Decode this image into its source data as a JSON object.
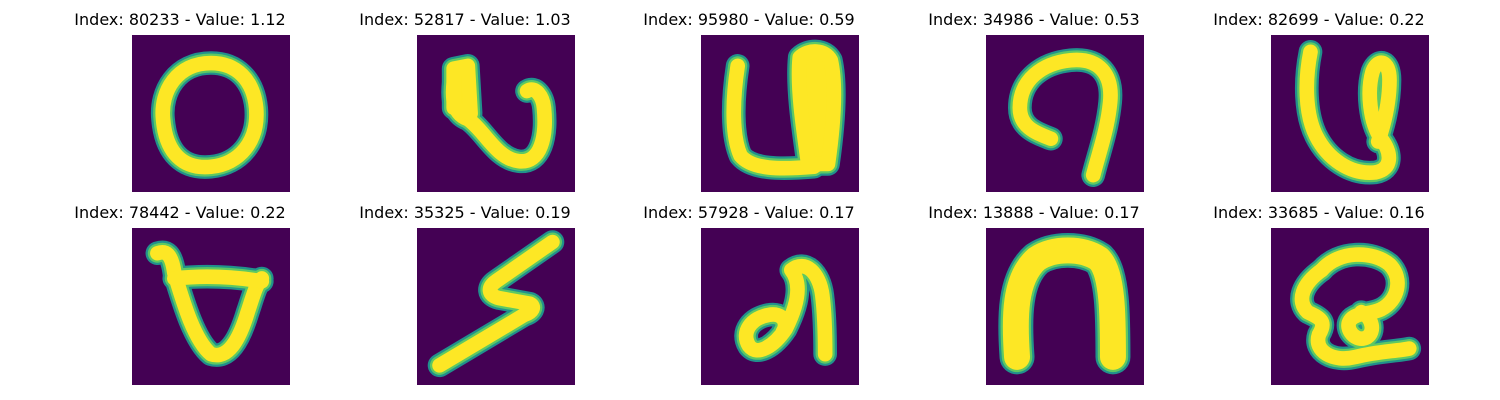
{
  "palette": {
    "background": "#440154",
    "edge": "#21918c",
    "mid": "#5ec962",
    "stroke": "#fde725"
  },
  "panels": [
    {
      "title": "Index: 80233 - Value: 1.12",
      "glyph": "ring-o"
    },
    {
      "title": "Index: 52817 - Value: 1.03",
      "glyph": "hook-u"
    },
    {
      "title": "Index: 95980 - Value: 0.59",
      "glyph": "cup-u"
    },
    {
      "title": "Index: 34986 - Value: 0.53",
      "glyph": "curl-hook"
    },
    {
      "title": "Index: 82699 - Value: 0.22",
      "glyph": "loop-u"
    },
    {
      "title": "Index: 78442 - Value: 0.22",
      "glyph": "bowl-b"
    },
    {
      "title": "Index: 35325 - Value: 0.19",
      "glyph": "zigzag-z"
    },
    {
      "title": "Index: 57928 - Value: 0.17",
      "glyph": "swirl-s"
    },
    {
      "title": "Index: 13888 - Value: 0.17",
      "glyph": "arch-n"
    },
    {
      "title": "Index: 33685 - Value: 0.16",
      "glyph": "knot-q"
    }
  ]
}
